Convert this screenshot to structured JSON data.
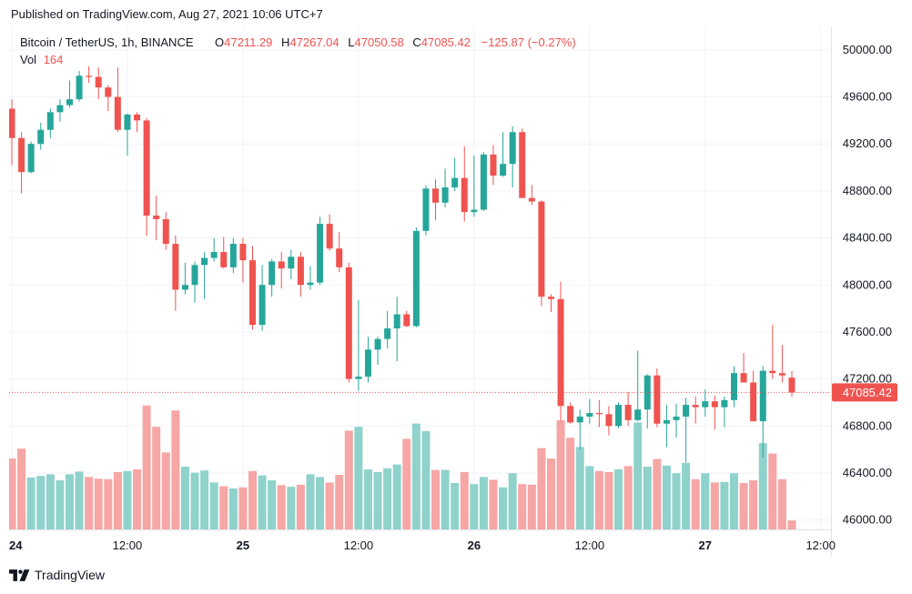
{
  "header": {
    "published": "Published on TradingView.com, Aug 27, 2021 10:06 UTC+7"
  },
  "legend": {
    "symbol": "Bitcoin / TetherUS, 1h, BINANCE",
    "o_label": "O",
    "o_value": "47211.29",
    "h_label": "H",
    "h_value": "47267.04",
    "l_label": "L",
    "l_value": "47050.58",
    "c_label": "C",
    "c_value": "47085.42",
    "change": "−125.87 (−0.27%)",
    "vol_label": "Vol",
    "vol_value": "164"
  },
  "footer": {
    "brand": "TradingView"
  },
  "colors": {
    "up": "#26a69a",
    "down": "#ef5350",
    "vol_up": "#8fd2cb",
    "vol_down": "#f5a6a5",
    "grid": "#f0f3fa",
    "axis_text": "#131722",
    "last_price_bg": "#ef5350"
  },
  "chart_data": {
    "type": "candlestick",
    "title": "Bitcoin / TetherUS, 1h, BINANCE",
    "series": [
      {
        "name": "Bitcoin / TetherUS",
        "ohlc": [
          [
            49500,
            49580,
            49020,
            49250
          ],
          [
            49250,
            49300,
            48780,
            48960
          ],
          [
            48960,
            49220,
            48950,
            49200
          ],
          [
            49200,
            49380,
            49150,
            49320
          ],
          [
            49320,
            49500,
            49250,
            49470
          ],
          [
            49470,
            49580,
            49390,
            49530
          ],
          [
            49530,
            49740,
            49510,
            49580
          ],
          [
            49580,
            49820,
            49560,
            49780
          ],
          [
            49780,
            49860,
            49720,
            49770
          ],
          [
            49770,
            49850,
            49580,
            49680
          ],
          [
            49680,
            49700,
            49480,
            49600
          ],
          [
            49600,
            49850,
            49300,
            49320
          ],
          [
            49320,
            49460,
            49100,
            49450
          ],
          [
            49450,
            49470,
            49300,
            49400
          ],
          [
            49400,
            49420,
            48420,
            48590
          ],
          [
            48590,
            48760,
            48380,
            48560
          ],
          [
            48560,
            48620,
            48300,
            48350
          ],
          [
            48350,
            48420,
            47780,
            47960
          ],
          [
            47960,
            48190,
            47920,
            48000
          ],
          [
            48000,
            48200,
            47850,
            48170
          ],
          [
            48170,
            48280,
            47880,
            48230
          ],
          [
            48230,
            48400,
            48200,
            48280
          ],
          [
            48280,
            48410,
            48140,
            48150
          ],
          [
            48150,
            48400,
            48100,
            48350
          ],
          [
            48350,
            48400,
            48020,
            48210
          ],
          [
            48210,
            48330,
            47620,
            47660
          ],
          [
            47660,
            48170,
            47610,
            48000
          ],
          [
            48000,
            48220,
            47900,
            48200
          ],
          [
            48200,
            48280,
            47970,
            48140
          ],
          [
            48140,
            48300,
            48050,
            48240
          ],
          [
            48240,
            48280,
            47900,
            48000
          ],
          [
            48000,
            48160,
            47960,
            48020
          ],
          [
            48020,
            48580,
            48000,
            48520
          ],
          [
            48520,
            48600,
            48290,
            48310
          ],
          [
            48310,
            48450,
            48110,
            48150
          ],
          [
            48150,
            48190,
            47170,
            47200
          ],
          [
            47200,
            47870,
            47100,
            47220
          ],
          [
            47220,
            47560,
            47170,
            47450
          ],
          [
            47450,
            47560,
            47320,
            47540
          ],
          [
            47540,
            47780,
            47460,
            47630
          ],
          [
            47630,
            47900,
            47350,
            47750
          ],
          [
            47750,
            47780,
            47640,
            47650
          ],
          [
            47650,
            48490,
            47640,
            48460
          ],
          [
            48460,
            48850,
            48420,
            48820
          ],
          [
            48820,
            48900,
            48550,
            48700
          ],
          [
            48700,
            48990,
            48660,
            48830
          ],
          [
            48830,
            49080,
            48800,
            48910
          ],
          [
            48910,
            49180,
            48540,
            48620
          ],
          [
            48620,
            49100,
            48580,
            48640
          ],
          [
            48640,
            49130,
            48630,
            49110
          ],
          [
            49110,
            49190,
            48850,
            48930
          ],
          [
            48930,
            49300,
            48920,
            49030
          ],
          [
            49030,
            49350,
            48830,
            49300
          ],
          [
            49300,
            49330,
            48780,
            48740
          ],
          [
            48740,
            48850,
            48680,
            48710
          ],
          [
            48710,
            48720,
            47820,
            47900
          ],
          [
            47900,
            47920,
            47770,
            47880
          ],
          [
            47880,
            48030,
            46840,
            46970
          ],
          [
            46970,
            47000,
            46820,
            46830
          ],
          [
            46830,
            46940,
            46600,
            46880
          ],
          [
            46880,
            47030,
            46820,
            46910
          ],
          [
            46910,
            47020,
            46790,
            46900
          ],
          [
            46900,
            46970,
            46720,
            46800
          ],
          [
            46800,
            47000,
            46780,
            46980
          ],
          [
            46980,
            47090,
            46800,
            46850
          ],
          [
            46850,
            47440,
            46840,
            46940
          ],
          [
            46940,
            47240,
            46780,
            47230
          ],
          [
            47230,
            47290,
            46790,
            46820
          ],
          [
            46820,
            46980,
            46620,
            46850
          ],
          [
            46850,
            46990,
            46700,
            46880
          ],
          [
            46880,
            47040,
            46490,
            46980
          ],
          [
            46980,
            47050,
            46820,
            46960
          ],
          [
            46960,
            47110,
            46880,
            47010
          ],
          [
            47010,
            47060,
            46770,
            46960
          ],
          [
            46960,
            47050,
            46790,
            47020
          ],
          [
            47020,
            47310,
            46960,
            47250
          ],
          [
            47250,
            47420,
            47180,
            47170
          ],
          [
            47170,
            47270,
            46880,
            46840
          ],
          [
            46840,
            47310,
            46530,
            47270
          ],
          [
            47270,
            47660,
            47200,
            47250
          ],
          [
            47250,
            47490,
            47170,
            47230
          ],
          [
            47211.29,
            47267.04,
            47050.58,
            47085.42
          ]
        ],
        "volume": [
          1300,
          1480,
          950,
          980,
          1010,
          900,
          1010,
          1060,
          960,
          930,
          920,
          1050,
          1070,
          1100,
          2270,
          1880,
          1410,
          2180,
          1150,
          1040,
          1080,
          860,
          790,
          750,
          770,
          1070,
          990,
          900,
          810,
          780,
          820,
          1010,
          960,
          860,
          1000,
          1810,
          1880,
          1100,
          1050,
          1120,
          1190,
          1660,
          1940,
          1800,
          1090,
          1090,
          850,
          1050,
          830,
          960,
          910,
          770,
          1030,
          830,
          820,
          1490,
          1300,
          2000,
          1680,
          1510,
          1160,
          1070,
          1050,
          1100,
          1160,
          1960,
          1150,
          1290,
          1170,
          1030,
          1220,
          920,
          1030,
          860,
          870,
          1030,
          850,
          900,
          1580,
          1390,
          920,
          164
        ]
      }
    ],
    "x_tick_labels": [
      "24",
      "12:00",
      "25",
      "12:00",
      "26",
      "12:00",
      "27",
      "12:00"
    ],
    "x_tick_index": [
      0,
      12,
      24,
      36,
      48,
      60,
      72,
      84
    ],
    "y_tick_labels": [
      "46000.00",
      "46400.00",
      "46800.00",
      "47200.00",
      "47600.00",
      "48000.00",
      "48400.00",
      "48800.00",
      "49200.00",
      "49600.00",
      "50000.00"
    ],
    "y_range": [
      45920,
      50200
    ],
    "last_price": "47085.42",
    "grid": true,
    "legend_position": "top-left"
  }
}
